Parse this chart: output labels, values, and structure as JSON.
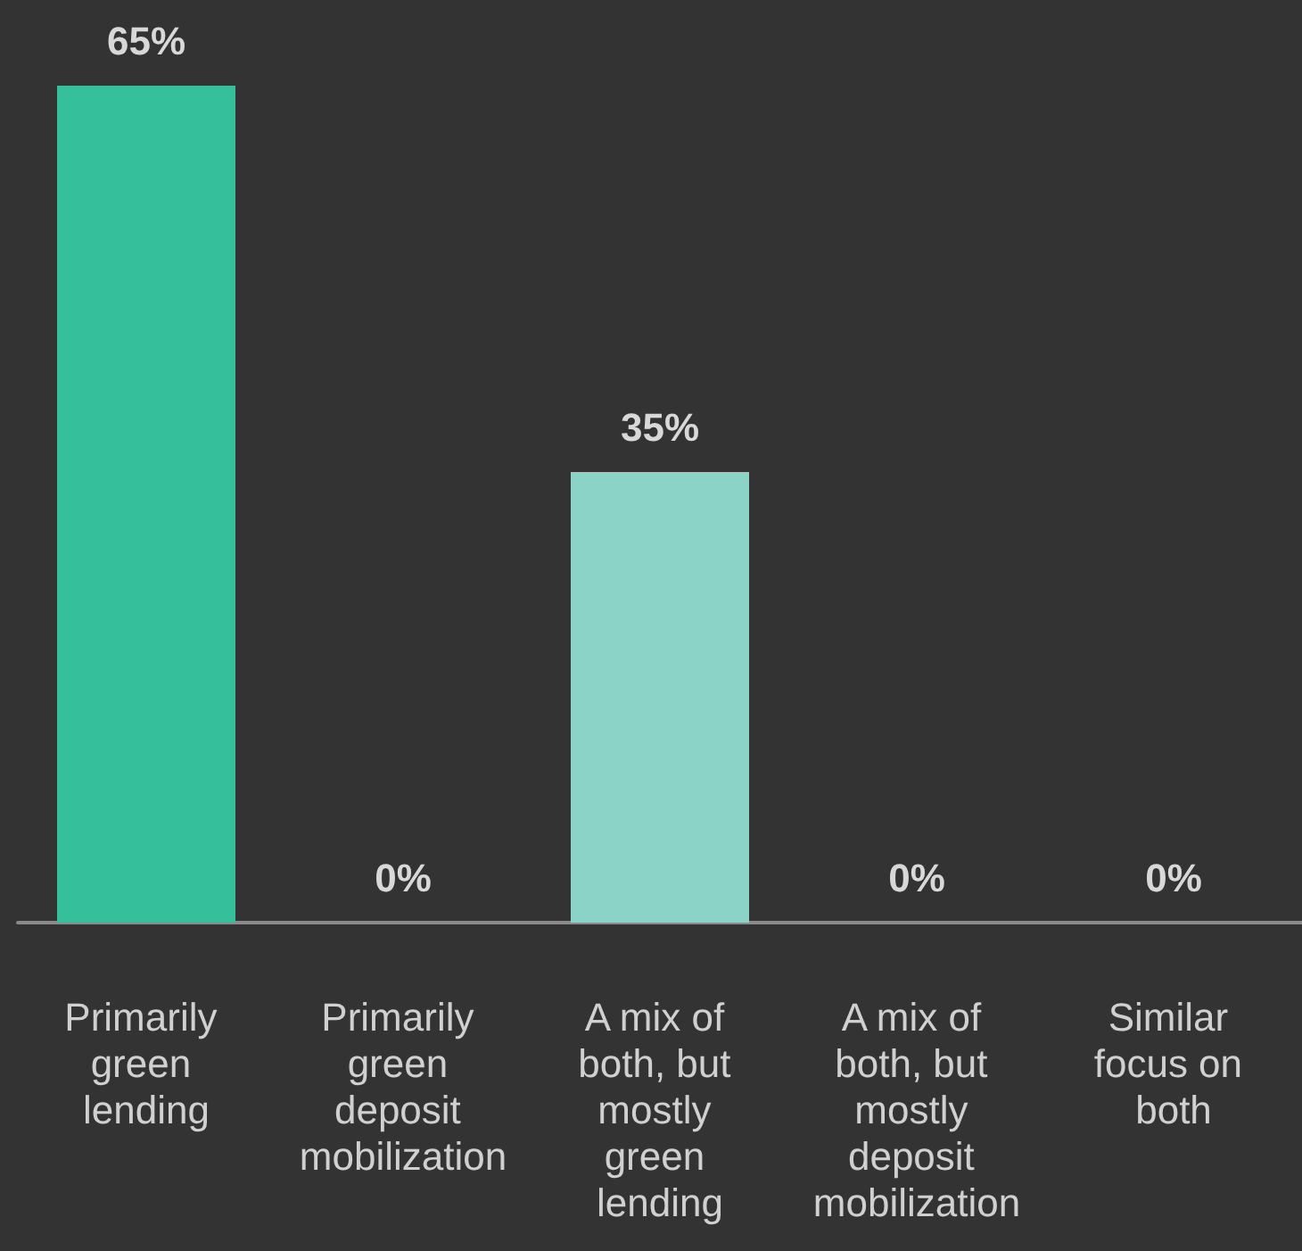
{
  "chart_data": {
    "type": "bar",
    "categories": [
      "Primarily green lending",
      "Primarily green deposit mobilization",
      "A mix of both, but mostly green lending",
      "A mix of both, but mostly deposit mobilization",
      "Similar focus on both"
    ],
    "values": [
      65,
      0,
      35,
      0,
      0
    ],
    "colors": [
      "#36bf9b",
      "#36bf9b",
      "#8bd3c7",
      "#8bd3c7",
      "#8bd3c7"
    ],
    "value_labels": [
      "65%",
      "0%",
      "35%",
      "0%",
      "0%"
    ]
  }
}
